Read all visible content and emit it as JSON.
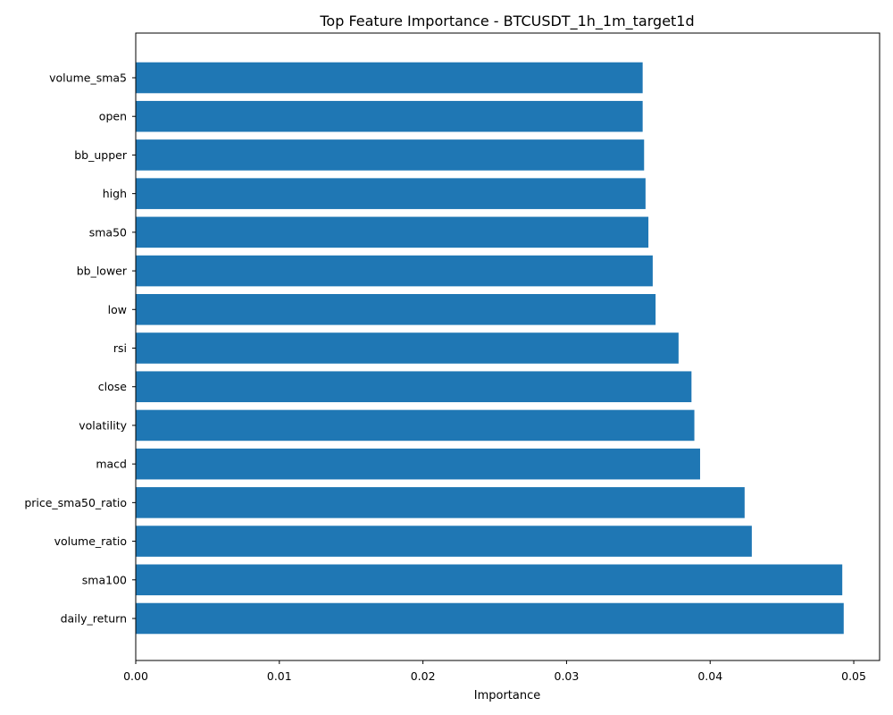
{
  "chart_data": {
    "type": "bar",
    "orientation": "horizontal",
    "title": "Top Feature Importance - BTCUSDT_1h_1m_target1d",
    "xlabel": "Importance",
    "ylabel": "",
    "xlim": [
      0.0,
      0.0518
    ],
    "xticks": [
      0.0,
      0.01,
      0.02,
      0.03,
      0.04,
      0.05
    ],
    "xtick_labels": [
      "0.00",
      "0.01",
      "0.02",
      "0.03",
      "0.04",
      "0.05"
    ],
    "grid": false,
    "bar_color": "#1f77b4",
    "categories": [
      "daily_return",
      "sma100",
      "volume_ratio",
      "price_sma50_ratio",
      "macd",
      "volatility",
      "close",
      "rsi",
      "low",
      "bb_lower",
      "sma50",
      "high",
      "bb_upper",
      "open",
      "volume_sma5"
    ],
    "values": [
      0.0493,
      0.0492,
      0.0429,
      0.0424,
      0.0393,
      0.0389,
      0.0387,
      0.0378,
      0.0362,
      0.036,
      0.0357,
      0.0355,
      0.0354,
      0.0353,
      0.0353
    ]
  }
}
